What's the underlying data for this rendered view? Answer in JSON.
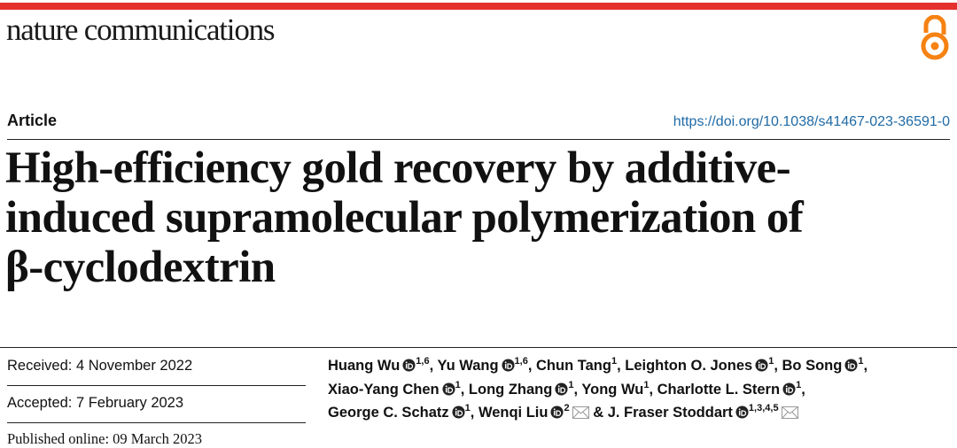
{
  "journal": "nature communications",
  "article_type": "Article",
  "doi": "https://doi.org/10.1038/s41467-023-36591-0",
  "title": [
    "High-efficiency gold recovery by additive-",
    "induced supramolecular polymerization of",
    "β-cyclodextrin"
  ],
  "dates": {
    "received": "Received: 4 November 2022",
    "accepted": "Accepted: 7 February 2023",
    "published": "Published online: 09 March 2023"
  },
  "authors": {
    "separator": ",",
    "conjunction": "&",
    "list": [
      {
        "name": "Huang Wu",
        "orcid": true,
        "affiliations": "1,6",
        "corresponding": false
      },
      {
        "name": "Yu Wang",
        "orcid": true,
        "affiliations": "1,6",
        "corresponding": false
      },
      {
        "name": "Chun Tang",
        "orcid": false,
        "affiliations": "1",
        "corresponding": false
      },
      {
        "name": "Leighton O. Jones",
        "orcid": true,
        "affiliations": "1",
        "corresponding": false
      },
      {
        "name": "Bo Song",
        "orcid": true,
        "affiliations": "1",
        "corresponding": false
      },
      {
        "name": "Xiao-Yang Chen",
        "orcid": true,
        "affiliations": "1",
        "corresponding": false
      },
      {
        "name": "Long Zhang",
        "orcid": true,
        "affiliations": "1",
        "corresponding": false
      },
      {
        "name": "Yong Wu",
        "orcid": false,
        "affiliations": "1",
        "corresponding": false
      },
      {
        "name": "Charlotte L. Stern",
        "orcid": true,
        "affiliations": "1",
        "corresponding": false
      },
      {
        "name": "George C. Schatz",
        "orcid": true,
        "affiliations": "1",
        "corresponding": false
      },
      {
        "name": "Wenqi Liu",
        "orcid": true,
        "affiliations": "2",
        "corresponding": true
      },
      {
        "name": "J. Fraser Stoddart",
        "orcid": true,
        "affiliations": "1,3,4,5",
        "corresponding": true
      }
    ]
  }
}
